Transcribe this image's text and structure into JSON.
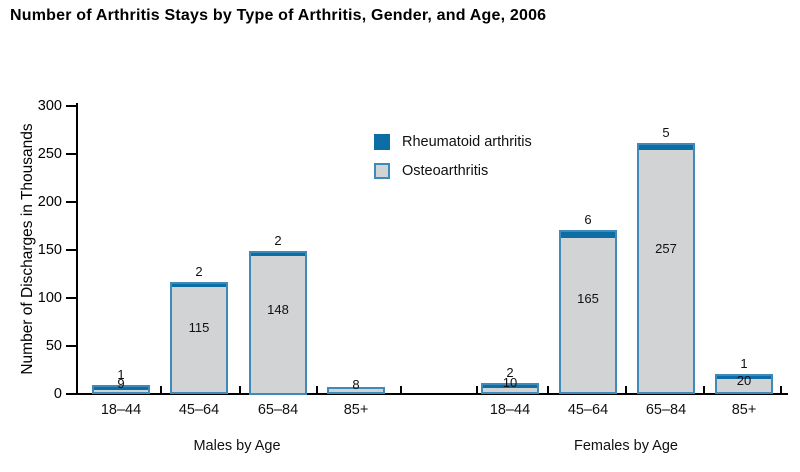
{
  "title": "Number of Arthritis Stays by Type of Arthritis, Gender, and Age, 2006",
  "chart_data": {
    "type": "bar",
    "stacked": true,
    "title": "Number of Arthritis Stays by Type of Arthritis, Gender, and Age, 2006",
    "xlabel": "",
    "ylabel": "Number of Discharges in Thousands",
    "ylim": [
      0,
      300
    ],
    "yticks": [
      0,
      50,
      100,
      150,
      200,
      250,
      300
    ],
    "grid": false,
    "legend_position": "inside-top-center",
    "legend": [
      {
        "label": "Rheumatoid arthritis",
        "color": "#0d6ea6"
      },
      {
        "label": "Osteoarthritis",
        "color": "#d2d3d5"
      }
    ],
    "colors": {
      "rheumatoid": "#0d6ea6",
      "osteoarthritis": "#d2d3d5",
      "bar_border": "#3e8ab8",
      "axis": "#000000"
    },
    "groups": [
      {
        "label": "Males by Age",
        "categories": [
          "18–44",
          "45–64",
          "65–84",
          "85+"
        ],
        "series": [
          {
            "name": "Osteoarthritis",
            "values": [
              9,
              115,
              148,
              8
            ]
          },
          {
            "name": "Rheumatoid arthritis",
            "values": [
              1,
              2,
              2,
              null
            ]
          }
        ]
      },
      {
        "label": "Females by Age",
        "categories": [
          "18–44",
          "45–64",
          "65–84",
          "85+"
        ],
        "series": [
          {
            "name": "Osteoarthritis",
            "values": [
              10,
              165,
              257,
              20
            ]
          },
          {
            "name": "Rheumatoid arthritis",
            "values": [
              2,
              6,
              5,
              1
            ]
          }
        ]
      }
    ]
  }
}
